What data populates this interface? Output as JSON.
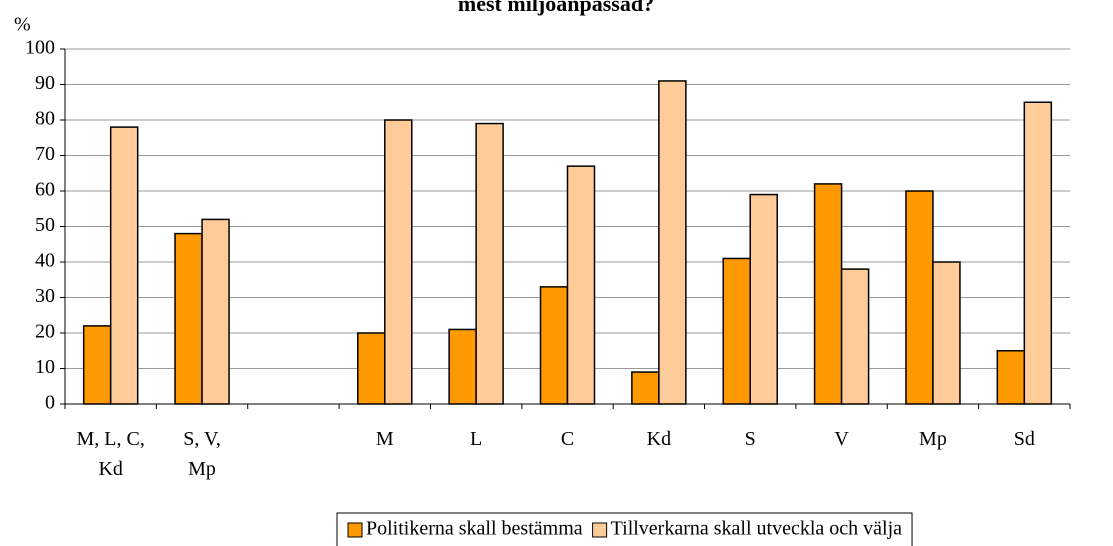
{
  "chart_data": {
    "type": "bar",
    "title": "mest miljöanpassad?",
    "y_label": "%",
    "categories": [
      "M, L, C,\nKd",
      "S, V,\nMp",
      null,
      "M",
      "L",
      "C",
      "Kd",
      "S",
      "V",
      "Mp",
      "Sd"
    ],
    "series": [
      {
        "name": "Politikerna skall bestämma",
        "color": "#ff9900",
        "values": [
          22,
          48,
          null,
          20,
          21,
          33,
          9,
          41,
          62,
          60,
          15
        ]
      },
      {
        "name": "Tillverkarna skall utveckla och välja",
        "color": "#ffcc99",
        "values": [
          78,
          52,
          null,
          80,
          79,
          67,
          91,
          59,
          38,
          40,
          85
        ]
      }
    ],
    "ylim": [
      0,
      100
    ],
    "yticks": [
      0,
      10,
      20,
      30,
      40,
      50,
      60,
      70,
      80,
      90,
      100
    ],
    "grid": true,
    "legend": "bottom"
  }
}
